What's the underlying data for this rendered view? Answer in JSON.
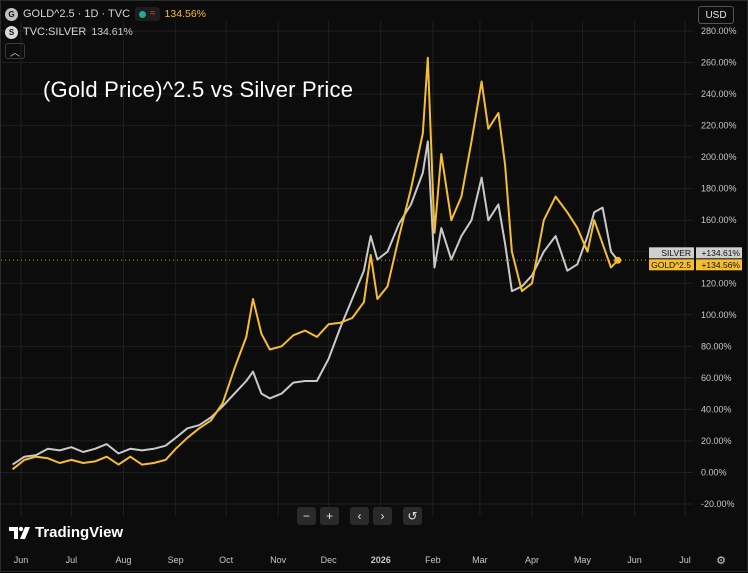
{
  "header": {
    "main_symbol_icon": "gold-circle-icon",
    "main_symbol": "GOLD^2.5 · 1D · TVC",
    "main_change": "134.56%",
    "second_symbol": "TVC:SILVER",
    "second_change": "134.61%",
    "collapse_icon": "chevron-up-icon",
    "currency": "USD"
  },
  "title_overlay": "(Gold Price)^2.5 vs Silver Price",
  "nav_buttons": [
    {
      "name": "zoom-out-button",
      "glyph": "−"
    },
    {
      "name": "zoom-in-button",
      "glyph": "+"
    },
    {
      "name": "scroll-left-button",
      "glyph": "‹"
    },
    {
      "name": "scroll-right-button",
      "glyph": "›"
    },
    {
      "name": "reset-button",
      "glyph": "↺"
    }
  ],
  "brand": {
    "logo_icon": "tradingview-logo-icon",
    "text": "TradingView"
  },
  "settings_icon": "gear-icon",
  "colors": {
    "gold": "#f5bd2f",
    "silver": "#c9c9c9",
    "background": "#0c0c0c",
    "grid": "#1f1f1f",
    "gold_tag": "#f5bd2f",
    "silver_tag": "#cfcfcf"
  },
  "chart_data": {
    "type": "line",
    "title": "(Gold Price)^2.5 vs Silver Price",
    "x_axis_ticks": [
      "Jun",
      "Jul",
      "Aug",
      "Sep",
      "Oct",
      "Nov",
      "Dec",
      "2026",
      "Feb",
      "Mar",
      "Apr",
      "May",
      "Jun",
      "Jul"
    ],
    "y_axis_ticks": [
      "280.00%",
      "260.00%",
      "240.00%",
      "220.00%",
      "200.00%",
      "180.00%",
      "160.00%",
      "140.00%",
      "120.00%",
      "100.00%",
      "80.00%",
      "60.00%",
      "40.00%",
      "20.00%",
      "0.00%",
      "-20.00%"
    ],
    "ylim": [
      -20,
      280
    ],
    "unit": "%",
    "grid": true,
    "price_tags": [
      {
        "label": "SILVER",
        "value": "+134.61%",
        "series": "TVC:SILVER"
      },
      {
        "label": "GOLD^2.5",
        "value": "+134.56%",
        "series": "GOLD^2.5"
      }
    ],
    "series": [
      {
        "name": "GOLD^2.5",
        "color": "#f5bd2f",
        "points": [
          [
            "2025-05-27",
            2
          ],
          [
            "2025-06-03",
            8
          ],
          [
            "2025-06-10",
            10
          ],
          [
            "2025-06-17",
            9
          ],
          [
            "2025-06-24",
            6
          ],
          [
            "2025-07-01",
            8
          ],
          [
            "2025-07-08",
            6
          ],
          [
            "2025-07-15",
            7
          ],
          [
            "2025-07-22",
            10
          ],
          [
            "2025-07-29",
            5
          ],
          [
            "2025-08-05",
            10
          ],
          [
            "2025-08-12",
            5
          ],
          [
            "2025-08-19",
            6
          ],
          [
            "2025-08-26",
            8
          ],
          [
            "2025-09-01",
            15
          ],
          [
            "2025-09-08",
            22
          ],
          [
            "2025-09-15",
            28
          ],
          [
            "2025-09-22",
            33
          ],
          [
            "2025-09-29",
            44
          ],
          [
            "2025-10-06",
            66
          ],
          [
            "2025-10-13",
            86
          ],
          [
            "2025-10-17",
            110
          ],
          [
            "2025-10-22",
            88
          ],
          [
            "2025-10-27",
            78
          ],
          [
            "2025-11-03",
            80
          ],
          [
            "2025-11-10",
            87
          ],
          [
            "2025-11-17",
            90
          ],
          [
            "2025-11-24",
            86
          ],
          [
            "2025-12-01",
            94
          ],
          [
            "2025-12-08",
            95
          ],
          [
            "2025-12-15",
            98
          ],
          [
            "2025-12-22",
            108
          ],
          [
            "2025-12-26",
            138
          ],
          [
            "2025-12-30",
            110
          ],
          [
            "2026-01-05",
            118
          ],
          [
            "2026-01-12",
            150
          ],
          [
            "2026-01-19",
            180
          ],
          [
            "2026-01-26",
            215
          ],
          [
            "2026-01-29",
            263
          ],
          [
            "2026-02-02",
            152
          ],
          [
            "2026-02-06",
            202
          ],
          [
            "2026-02-12",
            160
          ],
          [
            "2026-02-18",
            175
          ],
          [
            "2026-02-24",
            210
          ],
          [
            "2026-03-02",
            248
          ],
          [
            "2026-03-06",
            218
          ],
          [
            "2026-03-12",
            228
          ],
          [
            "2026-03-16",
            195
          ],
          [
            "2026-03-20",
            140
          ],
          [
            "2026-03-26",
            115
          ],
          [
            "2026-04-01",
            120
          ],
          [
            "2026-04-08",
            160
          ],
          [
            "2026-04-15",
            175
          ],
          [
            "2026-04-22",
            165
          ],
          [
            "2026-04-28",
            155
          ],
          [
            "2026-05-04",
            140
          ],
          [
            "2026-05-08",
            160
          ],
          [
            "2026-05-13",
            145
          ],
          [
            "2026-05-18",
            130
          ],
          [
            "2026-05-22",
            134.56
          ]
        ]
      },
      {
        "name": "TVC:SILVER",
        "color": "#c9c9c9",
        "points": [
          [
            "2025-05-27",
            5
          ],
          [
            "2025-06-03",
            10
          ],
          [
            "2025-06-10",
            11
          ],
          [
            "2025-06-17",
            15
          ],
          [
            "2025-06-24",
            14
          ],
          [
            "2025-07-01",
            16
          ],
          [
            "2025-07-08",
            13
          ],
          [
            "2025-07-15",
            15
          ],
          [
            "2025-07-22",
            18
          ],
          [
            "2025-07-29",
            12
          ],
          [
            "2025-08-05",
            15
          ],
          [
            "2025-08-12",
            14
          ],
          [
            "2025-08-19",
            15
          ],
          [
            "2025-08-26",
            17
          ],
          [
            "2025-09-01",
            22
          ],
          [
            "2025-09-08",
            28
          ],
          [
            "2025-09-15",
            30
          ],
          [
            "2025-09-22",
            35
          ],
          [
            "2025-09-29",
            42
          ],
          [
            "2025-10-06",
            50
          ],
          [
            "2025-10-13",
            58
          ],
          [
            "2025-10-17",
            64
          ],
          [
            "2025-10-22",
            50
          ],
          [
            "2025-10-27",
            47
          ],
          [
            "2025-11-03",
            50
          ],
          [
            "2025-11-10",
            57
          ],
          [
            "2025-11-17",
            58
          ],
          [
            "2025-11-24",
            58
          ],
          [
            "2025-12-01",
            72
          ],
          [
            "2025-12-08",
            92
          ],
          [
            "2025-12-15",
            110
          ],
          [
            "2025-12-22",
            128
          ],
          [
            "2025-12-26",
            150
          ],
          [
            "2025-12-30",
            135
          ],
          [
            "2026-01-05",
            140
          ],
          [
            "2026-01-12",
            158
          ],
          [
            "2026-01-19",
            170
          ],
          [
            "2026-01-26",
            190
          ],
          [
            "2026-01-29",
            210
          ],
          [
            "2026-02-02",
            130
          ],
          [
            "2026-02-06",
            155
          ],
          [
            "2026-02-12",
            135
          ],
          [
            "2026-02-18",
            150
          ],
          [
            "2026-02-24",
            160
          ],
          [
            "2026-03-02",
            187
          ],
          [
            "2026-03-06",
            160
          ],
          [
            "2026-03-12",
            170
          ],
          [
            "2026-03-16",
            145
          ],
          [
            "2026-03-20",
            115
          ],
          [
            "2026-03-26",
            118
          ],
          [
            "2026-04-01",
            125
          ],
          [
            "2026-04-08",
            140
          ],
          [
            "2026-04-15",
            150
          ],
          [
            "2026-04-22",
            128
          ],
          [
            "2026-04-28",
            132
          ],
          [
            "2026-05-04",
            150
          ],
          [
            "2026-05-08",
            165
          ],
          [
            "2026-05-13",
            168
          ],
          [
            "2026-05-18",
            140
          ],
          [
            "2026-05-22",
            134.61
          ]
        ]
      }
    ]
  }
}
